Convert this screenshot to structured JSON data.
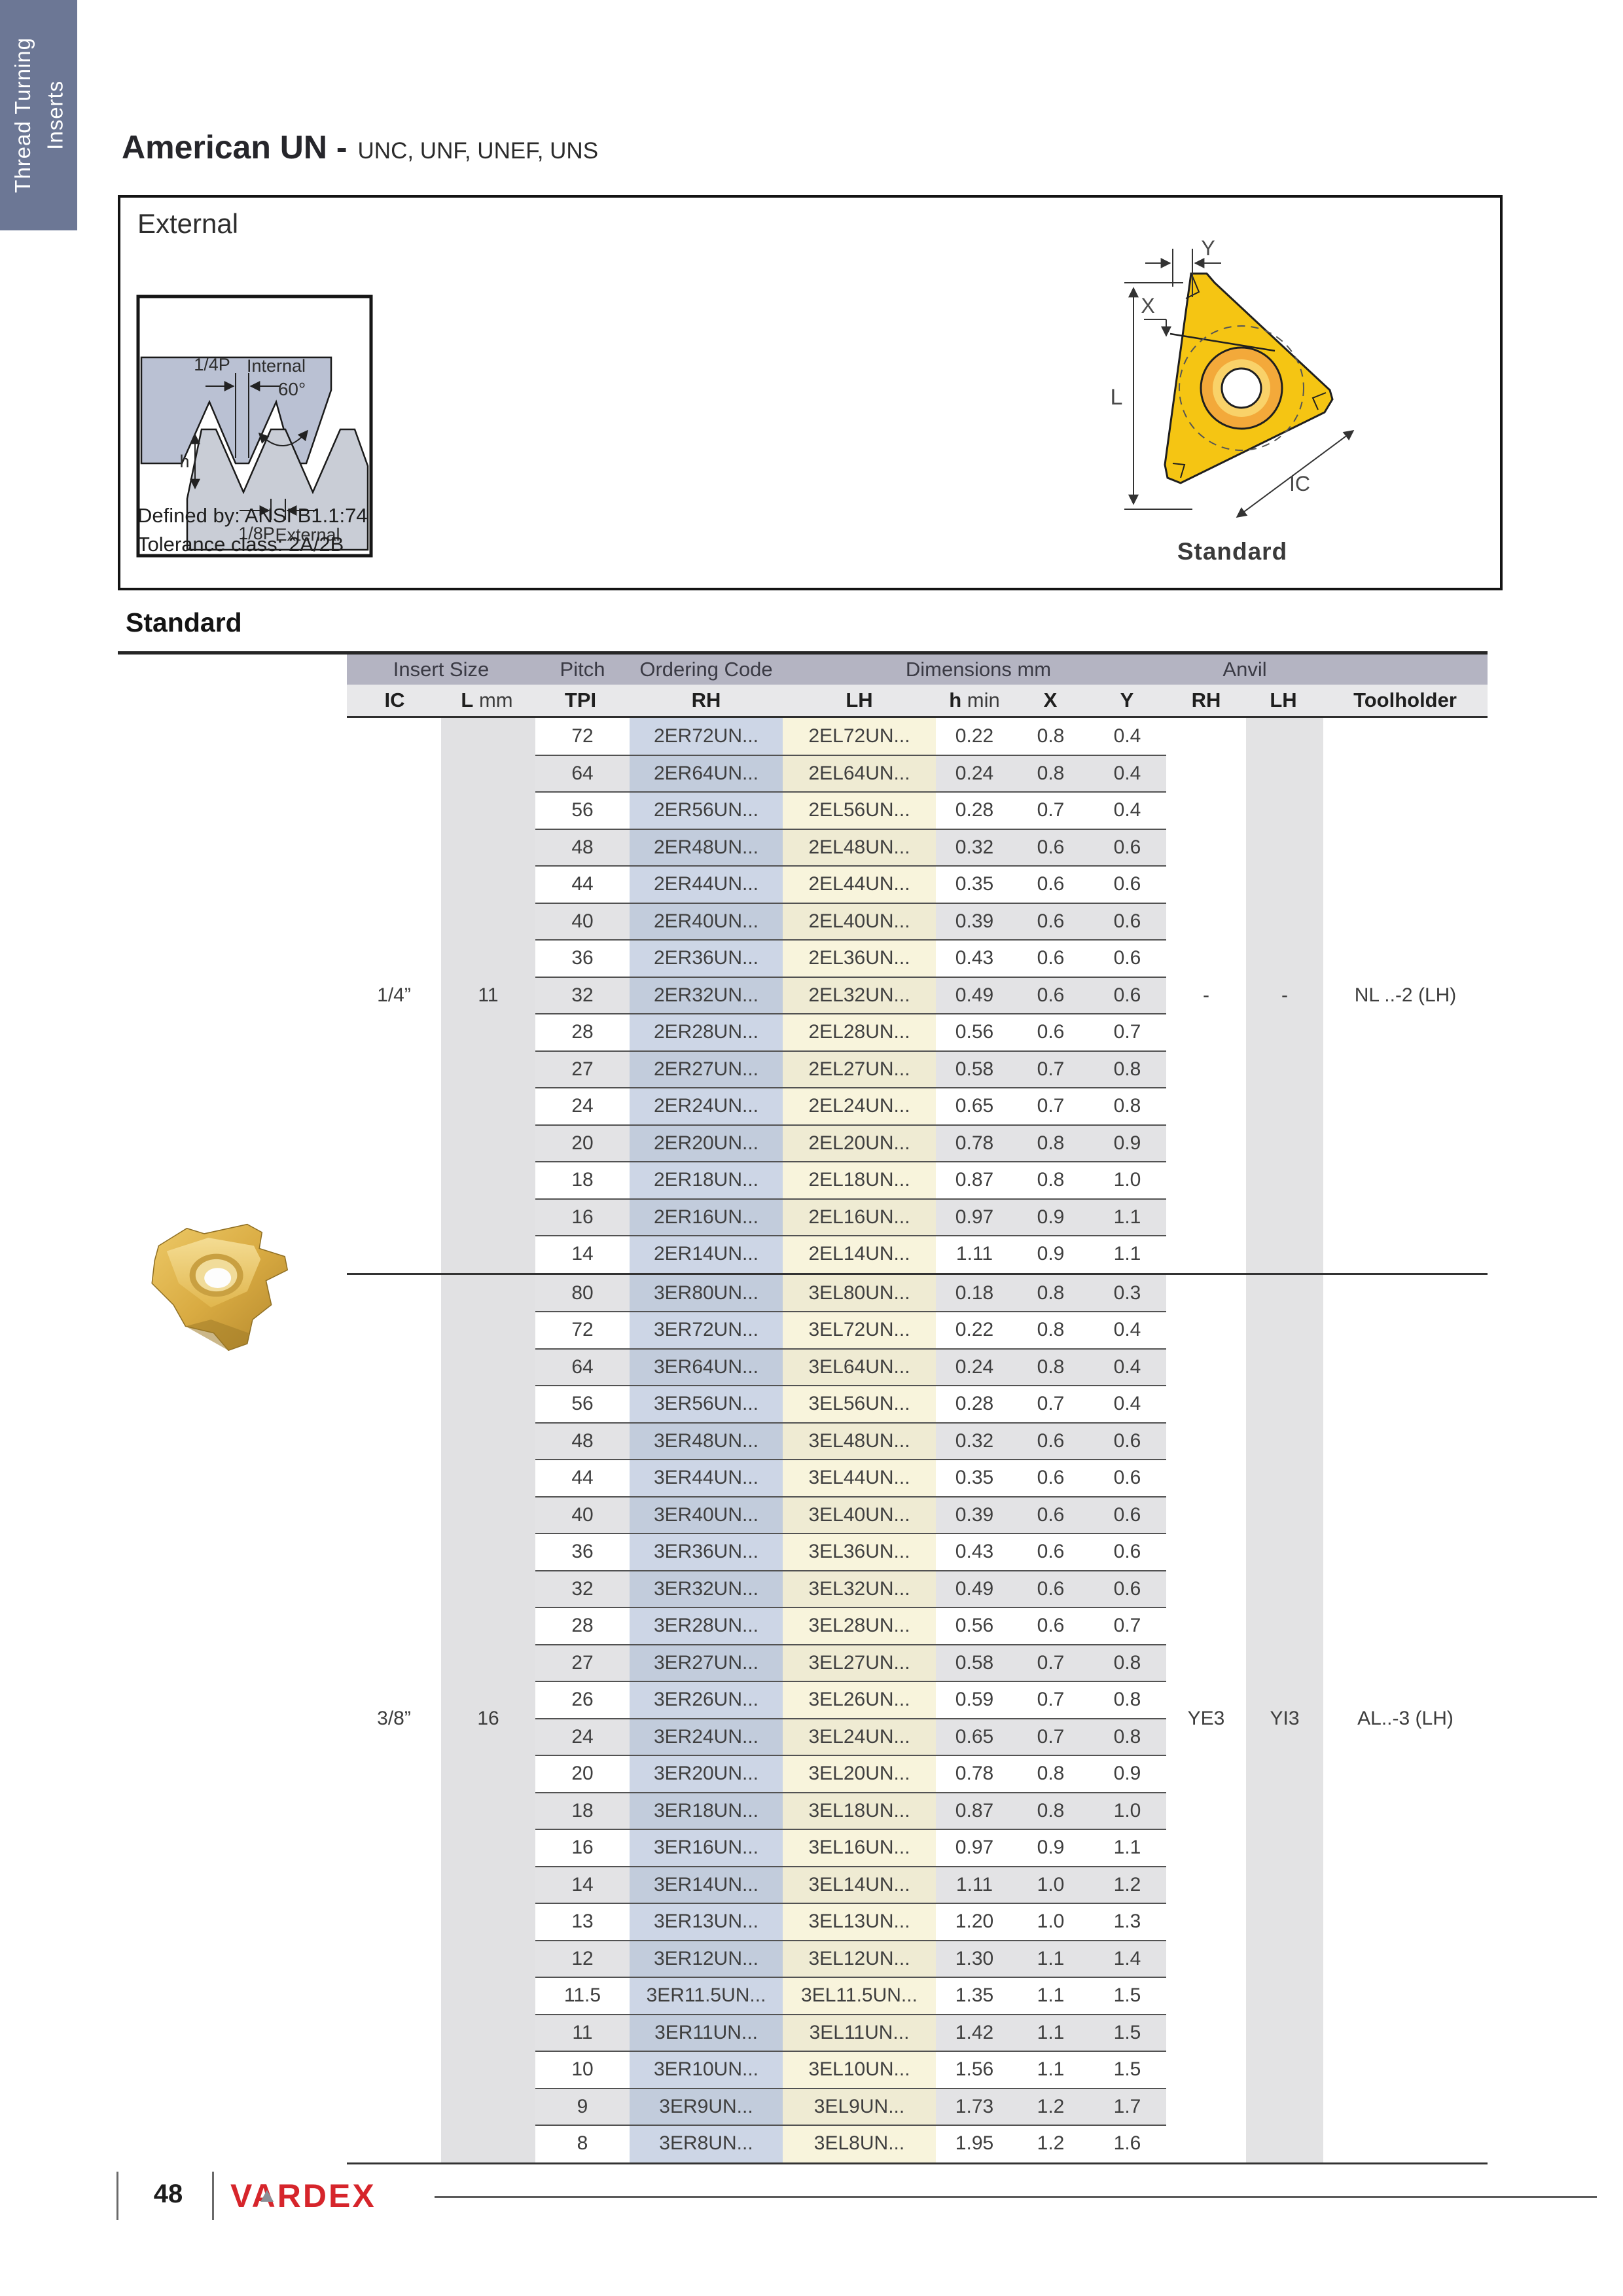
{
  "sidebar": {
    "line1": "Thread Turning",
    "line2": "Inserts"
  },
  "header": {
    "title": "American UN -",
    "subtitle": "UNC, UNF, UNEF, UNS"
  },
  "external_box": {
    "label": "External",
    "defined_by": "Defined by: ANSI B1.1:74",
    "tolerance": "Tolerance class: 2A/2B",
    "insert_caption": "Standard",
    "profile_labels": {
      "quarter_p": "1/4P",
      "internal": "Internal",
      "angle": "60°",
      "h": "h",
      "eighth_p": "1/8P",
      "external": "External"
    },
    "drawing_labels": {
      "x": "X",
      "y": "Y",
      "l": "L",
      "ic": "IC"
    }
  },
  "section": {
    "heading": "Standard"
  },
  "table": {
    "group_headers": {
      "insert_size": "Insert Size",
      "pitch": "Pitch",
      "ordering_code": "Ordering Code",
      "dimensions": "Dimensions mm",
      "anvil": "Anvil"
    },
    "col_headers": {
      "ic": "IC",
      "l_bold": "L",
      "l_unit": "mm",
      "tpi": "TPI",
      "rh": "RH",
      "lh": "LH",
      "h_bold": "h",
      "h_unit": "min",
      "x": "X",
      "y": "Y",
      "anvil_rh": "RH",
      "anvil_lh": "LH",
      "toolholder": "Toolholder"
    },
    "groups": [
      {
        "ic": "1/4”",
        "l": "11",
        "anvil_rh": "-",
        "anvil_lh": "-",
        "toolholder": "NL ..-2 (LH)",
        "start_shaded": false,
        "rows": [
          [
            "72",
            "2ER72UN...",
            "2EL72UN...",
            "0.22",
            "0.8",
            "0.4"
          ],
          [
            "64",
            "2ER64UN...",
            "2EL64UN...",
            "0.24",
            "0.8",
            "0.4"
          ],
          [
            "56",
            "2ER56UN...",
            "2EL56UN...",
            "0.28",
            "0.7",
            "0.4"
          ],
          [
            "48",
            "2ER48UN...",
            "2EL48UN...",
            "0.32",
            "0.6",
            "0.6"
          ],
          [
            "44",
            "2ER44UN...",
            "2EL44UN...",
            "0.35",
            "0.6",
            "0.6"
          ],
          [
            "40",
            "2ER40UN...",
            "2EL40UN...",
            "0.39",
            "0.6",
            "0.6"
          ],
          [
            "36",
            "2ER36UN...",
            "2EL36UN...",
            "0.43",
            "0.6",
            "0.6"
          ],
          [
            "32",
            "2ER32UN...",
            "2EL32UN...",
            "0.49",
            "0.6",
            "0.6"
          ],
          [
            "28",
            "2ER28UN...",
            "2EL28UN...",
            "0.56",
            "0.6",
            "0.7"
          ],
          [
            "27",
            "2ER27UN...",
            "2EL27UN...",
            "0.58",
            "0.7",
            "0.8"
          ],
          [
            "24",
            "2ER24UN...",
            "2EL24UN...",
            "0.65",
            "0.7",
            "0.8"
          ],
          [
            "20",
            "2ER20UN...",
            "2EL20UN...",
            "0.78",
            "0.8",
            "0.9"
          ],
          [
            "18",
            "2ER18UN...",
            "2EL18UN...",
            "0.87",
            "0.8",
            "1.0"
          ],
          [
            "16",
            "2ER16UN...",
            "2EL16UN...",
            "0.97",
            "0.9",
            "1.1"
          ],
          [
            "14",
            "2ER14UN...",
            "2EL14UN...",
            "1.11",
            "0.9",
            "1.1"
          ]
        ]
      },
      {
        "ic": "3/8”",
        "l": "16",
        "anvil_rh": "YE3",
        "anvil_lh": "YI3",
        "toolholder": "AL..-3 (LH)",
        "start_shaded": true,
        "rows": [
          [
            "80",
            "3ER80UN...",
            "3EL80UN...",
            "0.18",
            "0.8",
            "0.3"
          ],
          [
            "72",
            "3ER72UN...",
            "3EL72UN...",
            "0.22",
            "0.8",
            "0.4"
          ],
          [
            "64",
            "3ER64UN...",
            "3EL64UN...",
            "0.24",
            "0.8",
            "0.4"
          ],
          [
            "56",
            "3ER56UN...",
            "3EL56UN...",
            "0.28",
            "0.7",
            "0.4"
          ],
          [
            "48",
            "3ER48UN...",
            "3EL48UN...",
            "0.32",
            "0.6",
            "0.6"
          ],
          [
            "44",
            "3ER44UN...",
            "3EL44UN...",
            "0.35",
            "0.6",
            "0.6"
          ],
          [
            "40",
            "3ER40UN...",
            "3EL40UN...",
            "0.39",
            "0.6",
            "0.6"
          ],
          [
            "36",
            "3ER36UN...",
            "3EL36UN...",
            "0.43",
            "0.6",
            "0.6"
          ],
          [
            "32",
            "3ER32UN...",
            "3EL32UN...",
            "0.49",
            "0.6",
            "0.6"
          ],
          [
            "28",
            "3ER28UN...",
            "3EL28UN...",
            "0.56",
            "0.6",
            "0.7"
          ],
          [
            "27",
            "3ER27UN...",
            "3EL27UN...",
            "0.58",
            "0.7",
            "0.8"
          ],
          [
            "26",
            "3ER26UN...",
            "3EL26UN...",
            "0.59",
            "0.7",
            "0.8"
          ],
          [
            "24",
            "3ER24UN...",
            "3EL24UN...",
            "0.65",
            "0.7",
            "0.8"
          ],
          [
            "20",
            "3ER20UN...",
            "3EL20UN...",
            "0.78",
            "0.8",
            "0.9"
          ],
          [
            "18",
            "3ER18UN...",
            "3EL18UN...",
            "0.87",
            "0.8",
            "1.0"
          ],
          [
            "16",
            "3ER16UN...",
            "3EL16UN...",
            "0.97",
            "0.9",
            "1.1"
          ],
          [
            "14",
            "3ER14UN...",
            "3EL14UN...",
            "1.11",
            "1.0",
            "1.2"
          ],
          [
            "13",
            "3ER13UN...",
            "3EL13UN...",
            "1.20",
            "1.0",
            "1.3"
          ],
          [
            "12",
            "3ER12UN...",
            "3EL12UN...",
            "1.30",
            "1.1",
            "1.4"
          ],
          [
            "11.5",
            "3ER11.5UN...",
            "3EL11.5UN...",
            "1.35",
            "1.1",
            "1.5"
          ],
          [
            "11",
            "3ER11UN...",
            "3EL11UN...",
            "1.42",
            "1.1",
            "1.5"
          ],
          [
            "10",
            "3ER10UN...",
            "3EL10UN...",
            "1.56",
            "1.1",
            "1.5"
          ],
          [
            "9",
            "3ER9UN...",
            "3EL9UN...",
            "1.73",
            "1.2",
            "1.7"
          ],
          [
            "8",
            "3ER8UN...",
            "3EL8UN...",
            "1.95",
            "1.2",
            "1.6"
          ]
        ]
      }
    ]
  },
  "footer": {
    "page_number": "48",
    "brand": "VARDEX"
  },
  "colors": {
    "tab_bg": "#6c7795",
    "group_header_bg": "#b4b4c2",
    "col_header_bg": "#e8e8ea",
    "row_shade": "#e3e3e5",
    "rh_code_bg": "#cdd6e6",
    "lh_code_bg": "#f8f4dc",
    "insert_yellow": "#f5c513",
    "ring_orange": "#f3a93a",
    "brand_red": "#d6252b"
  }
}
